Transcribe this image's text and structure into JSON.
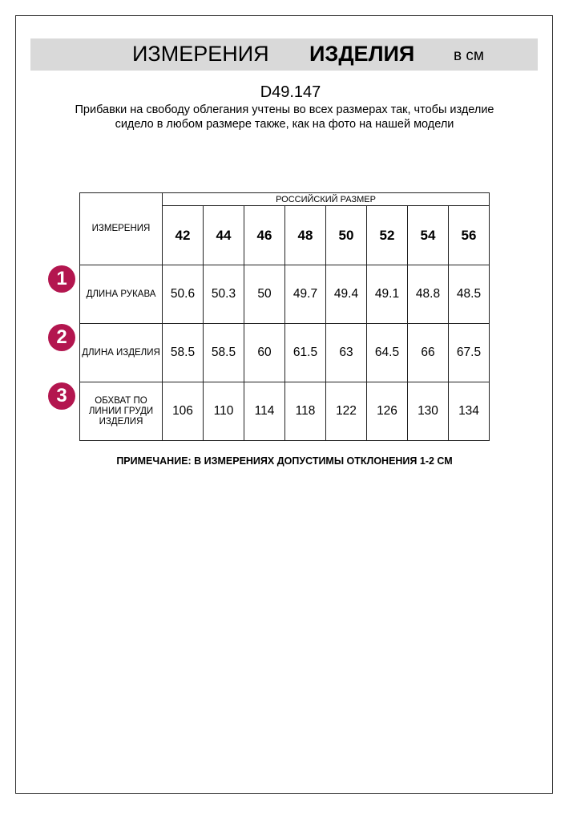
{
  "header": {
    "title_regular": "ИЗМЕРЕНИЯ",
    "title_bold": "ИЗДЕЛИЯ",
    "unit": "в см"
  },
  "product_code": "D49.147",
  "description": "Прибавки на свободу облегания учтены во всех размерах так, чтобы изделие сидело в любом размере также, как на фото на нашей модели",
  "table": {
    "corner_label": "ИЗМЕРЕНИЯ",
    "group_label": "РОССИЙСКИЙ РАЗМЕР",
    "sizes": [
      "42",
      "44",
      "46",
      "48",
      "50",
      "52",
      "54",
      "56"
    ],
    "rows": [
      {
        "badge": "1",
        "label": "ДЛИНА РУКАВА",
        "values": [
          "50.6",
          "50.3",
          "50",
          "49.7",
          "49.4",
          "49.1",
          "48.8",
          "48.5"
        ]
      },
      {
        "badge": "2",
        "label": "ДЛИНА ИЗДЕЛИЯ",
        "values": [
          "58.5",
          "58.5",
          "60",
          "61.5",
          "63",
          "64.5",
          "66",
          "67.5"
        ]
      },
      {
        "badge": "3",
        "label": "ОБХВАТ ПО ЛИНИИ ГРУДИ ИЗДЕЛИЯ",
        "values": [
          "106",
          "110",
          "114",
          "118",
          "122",
          "126",
          "130",
          "134"
        ]
      }
    ]
  },
  "note": "ПРИМЕЧАНИЕ: В ИЗМЕРЕНИЯХ ДОПУСТИМЫ ОТКЛОНЕНИЯ 1-2 СМ",
  "colors": {
    "badge": "#b3164f",
    "title_bar": "#d9d9d9"
  }
}
